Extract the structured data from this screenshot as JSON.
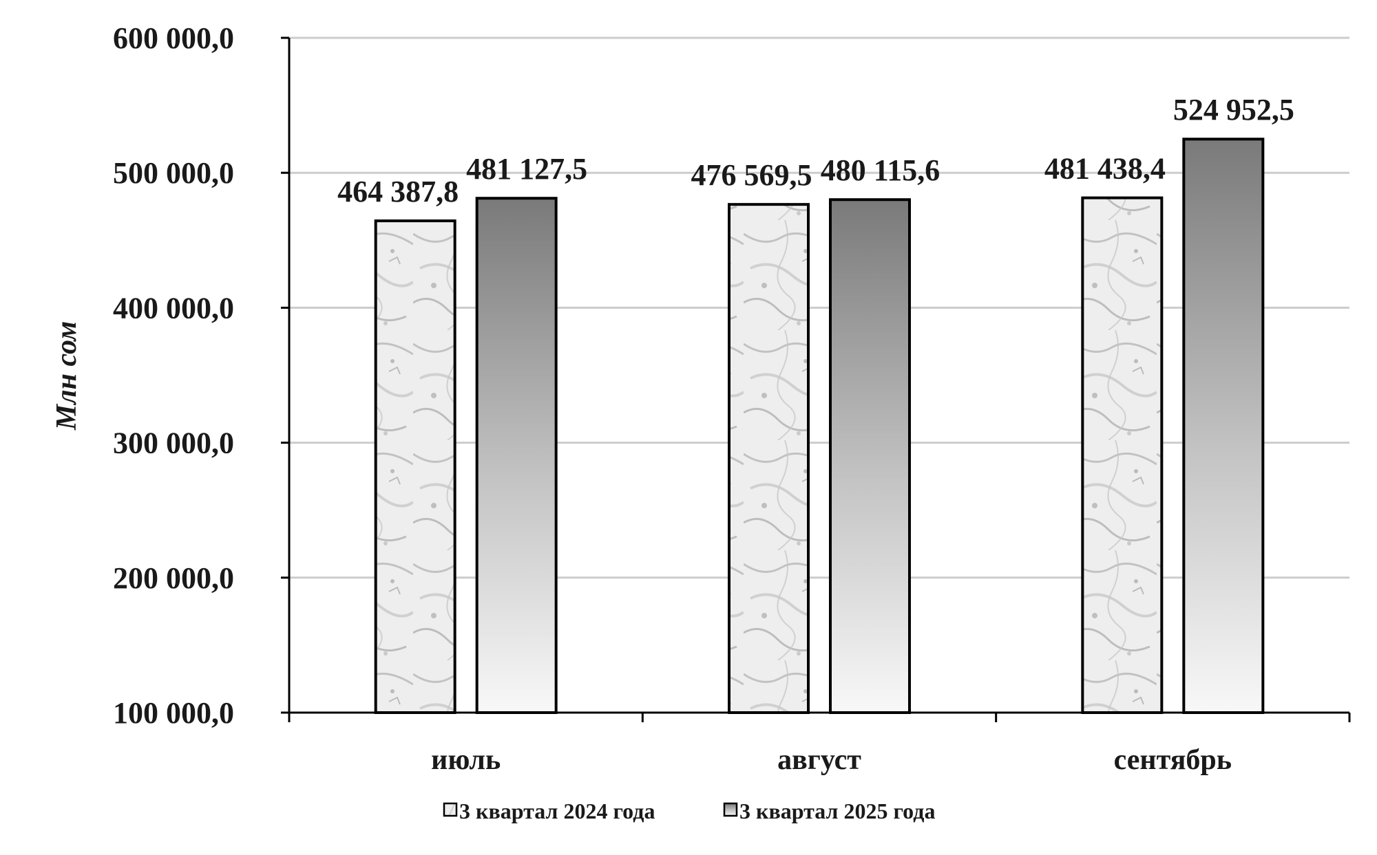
{
  "chart_data": {
    "type": "bar",
    "ylabel": "Млн сом",
    "ylim": [
      100000,
      600000
    ],
    "yticks": [
      100000,
      200000,
      300000,
      400000,
      500000,
      600000
    ],
    "ytick_labels": [
      "100 000,0",
      "200 000,0",
      "300 000,0",
      "400 000,0",
      "500 000,0",
      "600 000,0"
    ],
    "categories": [
      "июль",
      "август",
      "сентябрь"
    ],
    "series": [
      {
        "name": "3 квартал 2024 года",
        "values": [
          464387.8,
          476569.5,
          481438.4
        ],
        "labels": [
          "464 387,8",
          "476 569,5",
          "481 438,4"
        ],
        "fill": "marble-gray"
      },
      {
        "name": "3 квартал 2025 года",
        "values": [
          481127.5,
          480115.6,
          524952.5
        ],
        "labels": [
          "481 127,5",
          "480 115,6",
          "524 952,5"
        ],
        "fill": "gradient-gray"
      }
    ],
    "grid": true,
    "legend_position": "bottom-center",
    "colors": {
      "gradient_top": "#7a7a7a",
      "gradient_bottom": "#f8f8f8",
      "marble_base": "#eeeeee",
      "marble_vein": "#a8a8a8",
      "gridline": "#cccccc",
      "axis": "#000000"
    }
  }
}
